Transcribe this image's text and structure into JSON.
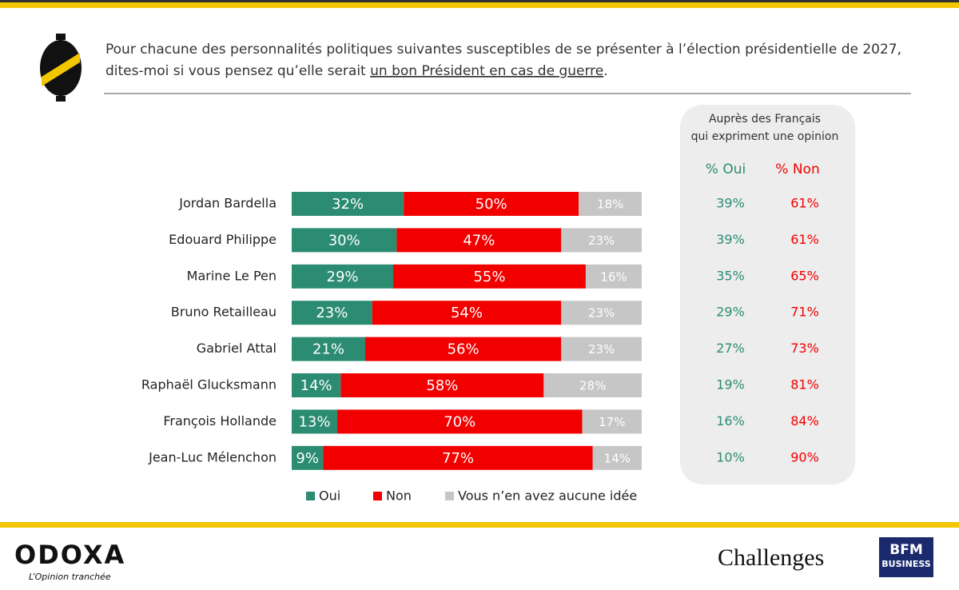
{
  "chart_data": {
    "type": "stacked-barh",
    "title_parts": [
      "Pour chacune des personnalités politiques suivantes susceptibles de se présenter à l’élection présidentielle de 2027,",
      "dites-moi si vous pensez qu’elle serait ",
      "un bon Président en cas de guerre",
      "."
    ],
    "categories": [
      "Jordan Bardella",
      "Edouard Philippe",
      "Marine Le Pen",
      "Bruno Retailleau",
      "Gabriel Attal",
      "Raphaël Glucksmann",
      "François Hollande",
      "Jean-Luc Mélenchon"
    ],
    "xlim": [
      0,
      100
    ],
    "series": [
      {
        "name": "Oui",
        "color": "#2b8c72",
        "values": [
          32,
          30,
          29,
          23,
          21,
          14,
          13,
          9
        ],
        "value_labels": [
          "32%",
          "30%",
          "29%",
          "23%",
          "21%",
          "14%",
          "13%",
          "9%"
        ]
      },
      {
        "name": "Non",
        "color": "#f20000",
        "values": [
          50,
          47,
          55,
          54,
          56,
          58,
          70,
          77
        ],
        "value_labels": [
          "50%",
          "47%",
          "55%",
          "54%",
          "56%",
          "58%",
          "70%",
          "77%"
        ]
      },
      {
        "name": "Vous n’en avez aucune idée",
        "color": "#c6c6c6",
        "values": [
          18,
          23,
          16,
          23,
          23,
          28,
          17,
          14
        ],
        "value_labels": [
          "18%",
          "23%",
          "16%",
          "23%",
          "23%",
          "28%",
          "17%",
          "14%"
        ]
      }
    ]
  },
  "panel": {
    "title": [
      "Auprès des Français",
      "qui expriment une opinion"
    ],
    "columns": [
      "% Oui",
      "% Non"
    ],
    "rows": [
      [
        "39%",
        "61%"
      ],
      [
        "39%",
        "61%"
      ],
      [
        "35%",
        "65%"
      ],
      [
        "29%",
        "71%"
      ],
      [
        "27%",
        "73%"
      ],
      [
        "19%",
        "81%"
      ],
      [
        "16%",
        "84%"
      ],
      [
        "10%",
        "90%"
      ]
    ]
  },
  "footer": {
    "brand": "ODOXA",
    "tagline": "L’Opinion tranchée",
    "partner1": "Challenges",
    "partner2": [
      "BFM",
      "BUSINESS"
    ]
  }
}
